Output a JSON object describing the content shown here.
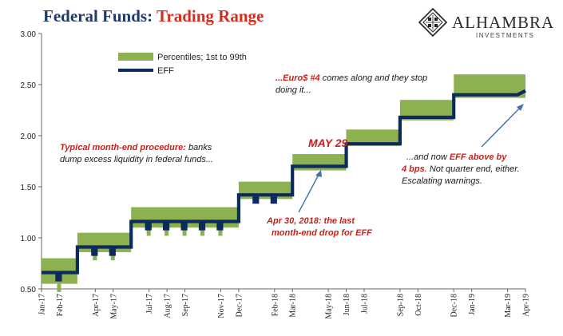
{
  "title": {
    "part1": "Federal Funds: ",
    "part2": "Trading Range"
  },
  "logo": {
    "name": "ALHAMBRA",
    "sub": "INVESTMENTS"
  },
  "colors": {
    "band": "#8db050",
    "line": "#0d2a5e",
    "annotation_red": "#c8201b",
    "annotation_dark": "#1a1a1a",
    "arrow": "#3f6fb0",
    "title_blue": "#1f3a6e",
    "title_red": "#d92b1e"
  },
  "chart_data": {
    "type": "line",
    "ylim": [
      0.5,
      3.0
    ],
    "yticks": [
      "0.50",
      "1.00",
      "1.50",
      "2.00",
      "2.50",
      "3.00"
    ],
    "x_ticks": [
      "Jan-17",
      "Feb-17",
      "Apr-17",
      "May-17",
      "Jul-17",
      "Aug-17",
      "Sep-17",
      "Nov-17",
      "Dec-17",
      "Feb-18",
      "Mar-18",
      "May-18",
      "Jun-18",
      "Jul-18",
      "Sep-18",
      "Oct-18",
      "Dec-18",
      "Jan-19",
      "Mar-19",
      "Apr-19"
    ],
    "x_range": [
      "Jan-17",
      "Apr-19"
    ],
    "legend": {
      "band_label": "Percentiles; 1st to 99th",
      "line_label": "EFF",
      "position": "top-left"
    },
    "series": [
      {
        "name": "EFF",
        "regimes": [
          {
            "start": "Jan-17",
            "end": "Mar-17",
            "value": 0.66
          },
          {
            "start": "Mar-17",
            "end": "Jun-17",
            "value": 0.91
          },
          {
            "start": "Jun-17",
            "end": "Dec-17",
            "value": 1.16
          },
          {
            "start": "Dec-17",
            "end": "Mar-18",
            "value": 1.42
          },
          {
            "start": "Mar-18",
            "end": "Jun-18",
            "value": 1.7
          },
          {
            "start": "Jun-18",
            "end": "Sep-18",
            "value": 1.92
          },
          {
            "start": "Sep-18",
            "end": "Dec-18",
            "value": 2.18
          },
          {
            "start": "Dec-18",
            "end": "Apr-19",
            "value": 2.4
          }
        ],
        "end_value": 2.44
      },
      {
        "name": "Percentiles; 1st to 99th",
        "regimes": [
          {
            "start": "Jan-17",
            "end": "Mar-17",
            "low": 0.55,
            "high": 0.8
          },
          {
            "start": "Mar-17",
            "end": "Jun-17",
            "low": 0.86,
            "high": 1.05
          },
          {
            "start": "Jun-17",
            "end": "Dec-17",
            "low": 1.1,
            "high": 1.3
          },
          {
            "start": "Dec-17",
            "end": "Mar-18",
            "low": 1.38,
            "high": 1.55
          },
          {
            "start": "Mar-18",
            "end": "Jun-18",
            "low": 1.66,
            "high": 1.82
          },
          {
            "start": "Jun-18",
            "end": "Sep-18",
            "low": 1.9,
            "high": 2.06
          },
          {
            "start": "Sep-18",
            "end": "Dec-18",
            "low": 2.15,
            "high": 2.35
          },
          {
            "start": "Dec-18",
            "end": "Apr-19",
            "low": 2.37,
            "high": 2.6
          }
        ]
      }
    ]
  },
  "annotations": {
    "euro_red": "...Euro$ #4",
    "euro_rest1": " comes along and they stop",
    "euro_line2": "doing it...",
    "typical_red": "Typical month-end procedure:",
    "typical_rest": " banks",
    "typical_line2": "dump excess liquidity in federal funds...",
    "may29": "MAY 29",
    "apr30_line1": "Apr 30, 2018: the last",
    "apr30_line2": "month-end drop for EFF",
    "eff_l1a": "...and now ",
    "eff_l1b": "EFF above by",
    "eff_l2a": "4 bps",
    "eff_l2b": ". Not quarter end, either.",
    "eff_l3": "Escalating warnings."
  }
}
